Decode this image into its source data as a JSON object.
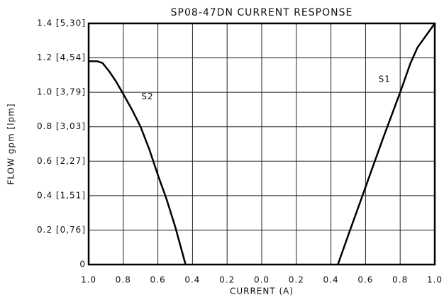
{
  "chart_data": {
    "type": "line",
    "title": "SP08-47DN CURRENT RESPONSE",
    "x_label": "CURRENT (A)",
    "y_label": "FLOW gpm [lpm]",
    "xlim": [
      -1,
      1
    ],
    "ylim": [
      0,
      1.4
    ],
    "xticks": [
      {
        "value": -1,
        "label": "1.0"
      },
      {
        "value": -0.8,
        "label": "0.8"
      },
      {
        "value": -0.6,
        "label": "0.6"
      },
      {
        "value": -0.4,
        "label": "0.4"
      },
      {
        "value": -0.2,
        "label": "0.2"
      },
      {
        "value": 0,
        "label": "0.0"
      },
      0.2,
      0.4,
      0.6,
      0.8,
      {
        "value": 1,
        "label": "1.0"
      }
    ],
    "yticks": [
      0,
      {
        "value": 0.2,
        "label": "0.2 [0,76]"
      },
      {
        "value": 0.4,
        "label": "0.4 [1,51]"
      },
      {
        "value": 0.6,
        "label": "0.6 [2,27]"
      },
      {
        "value": 0.8,
        "label": "0.8 [3,03]"
      },
      {
        "value": 1,
        "label": "1.0 [3,79]"
      },
      {
        "value": 1.2,
        "label": "1.2 [4,54]"
      },
      {
        "value": 1.4,
        "label": "1.4 [5,30]"
      }
    ],
    "grid": true,
    "series": [
      {
        "name": "S2",
        "color": "#000000",
        "x": [
          -1,
          -0.95,
          -0.92,
          -0.88,
          -0.84,
          -0.8,
          -0.75,
          -0.7,
          -0.65,
          -0.6,
          -0.55,
          -0.5,
          -0.44
        ],
        "values": [
          1.18,
          1.18,
          1.17,
          1.12,
          1.06,
          0.99,
          0.9,
          0.8,
          0.67,
          0.52,
          0.38,
          0.22,
          0
        ]
      },
      {
        "name": "S1",
        "color": "#000000",
        "x": [
          0.44,
          0.5,
          0.6,
          0.7,
          0.8,
          0.86,
          0.9,
          0.95,
          1
        ],
        "values": [
          0,
          0.17,
          0.45,
          0.73,
          1.0,
          1.17,
          1.26,
          1.33,
          1.4
        ]
      }
    ]
  }
}
